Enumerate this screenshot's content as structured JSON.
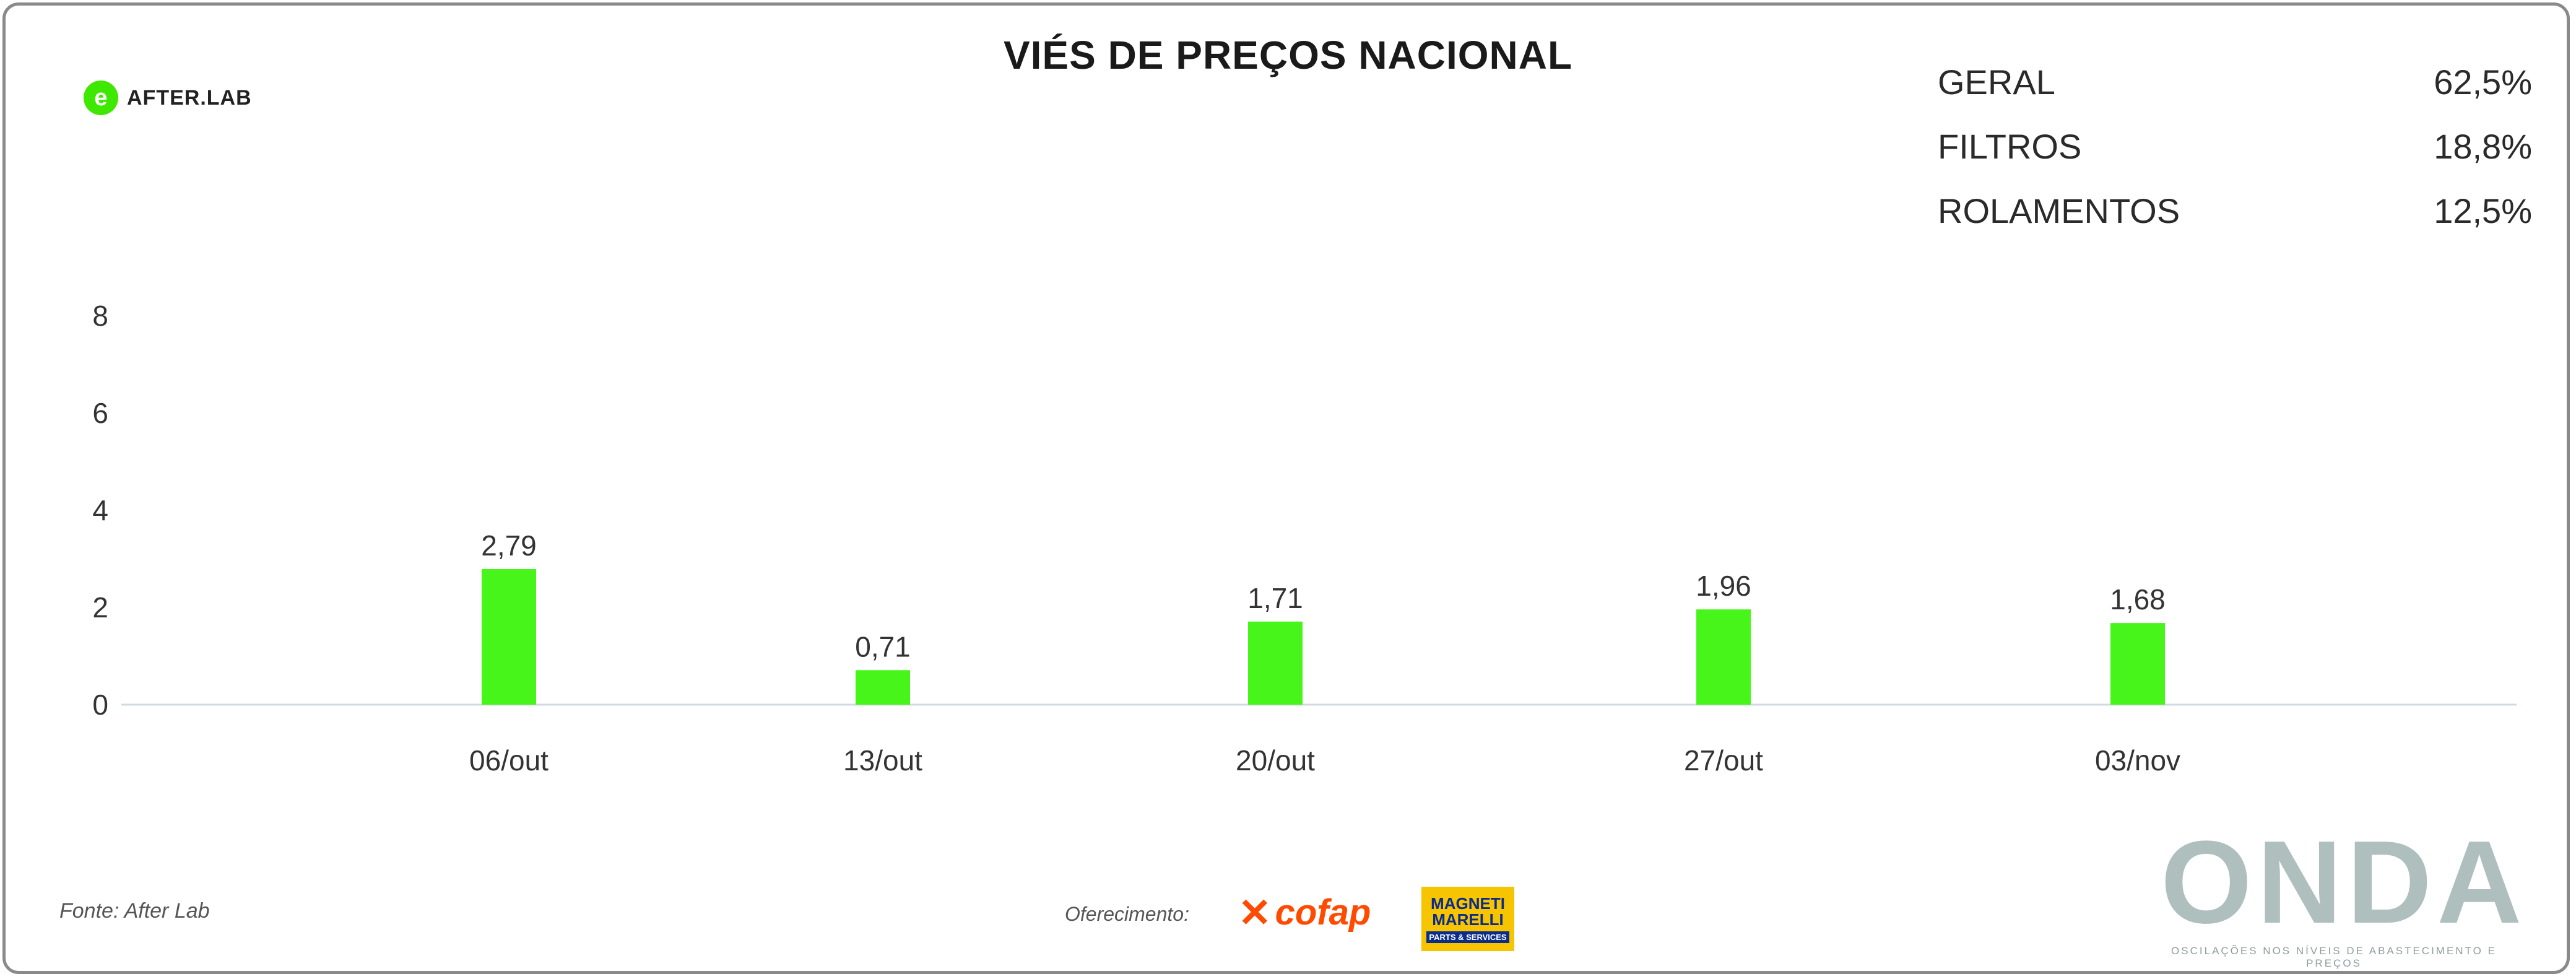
{
  "title": "VIÉS DE PREÇOS NACIONAL",
  "brand": {
    "icon_glyph": "e",
    "name": "AFTER.LAB",
    "accent_color": "#3ee800"
  },
  "stats": [
    {
      "label": "GERAL",
      "value": "62,5%"
    },
    {
      "label": "FILTROS",
      "value": "18,8%"
    },
    {
      "label": "ROLAMENTOS",
      "value": "12,5%"
    }
  ],
  "chart_data": {
    "type": "bar",
    "categories": [
      "06/out",
      "13/out",
      "20/out",
      "27/out",
      "03/nov"
    ],
    "values": [
      2.79,
      0.71,
      1.71,
      1.96,
      1.68
    ],
    "value_labels": [
      "2,79",
      "0,71",
      "1,71",
      "1,96",
      "1,68"
    ],
    "y_ticks": [
      "0",
      "2",
      "4",
      "6",
      "8"
    ],
    "ylim": [
      0,
      8
    ],
    "bar_color": "#48f51a",
    "grid": false
  },
  "footer": {
    "source": "Fonte: After Lab",
    "sponsor_label": "Oferecimento:",
    "cofap": "cofap",
    "magneti_marelli": {
      "line1": "MAGNETI",
      "line2": "MARELLI",
      "tagline": "PARTS & SERVICES"
    },
    "onda": {
      "word": "ONDA",
      "tagline": "OSCILAÇÕES NOS NÍVEIS DE ABASTECIMENTO E PREÇOS"
    }
  }
}
